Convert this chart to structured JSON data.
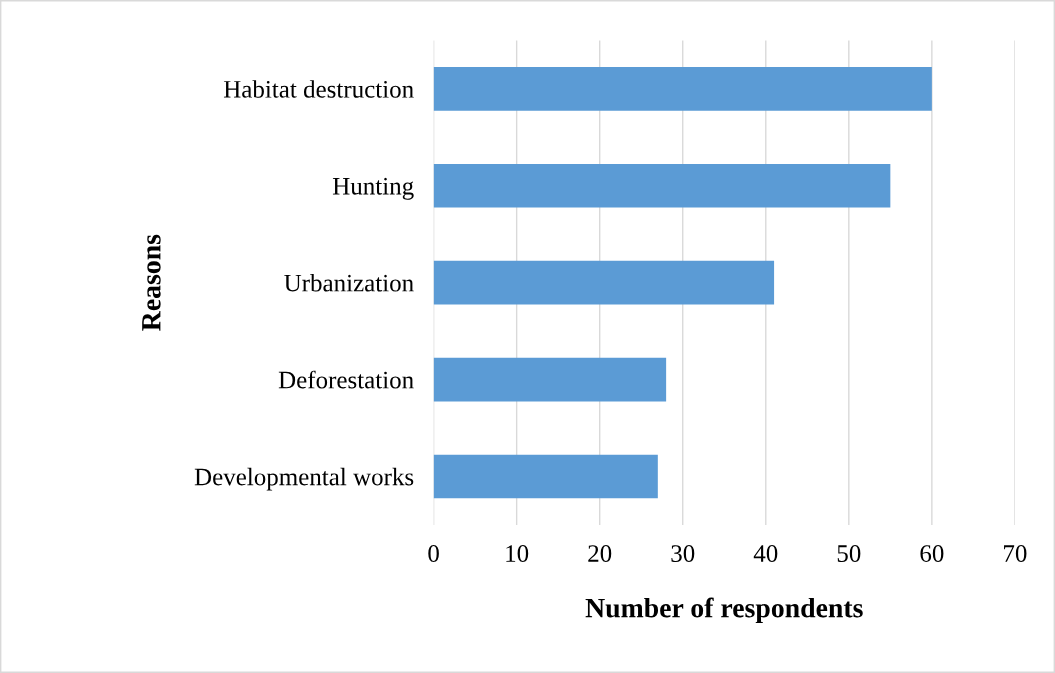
{
  "chart_data": {
    "type": "bar",
    "orientation": "horizontal",
    "categories": [
      "Habitat destruction",
      "Hunting",
      "Urbanization",
      "Deforestation",
      "Developmental works"
    ],
    "values": [
      60,
      55,
      41,
      28,
      27
    ],
    "color": "#5b9bd5",
    "xlabel": "Number of respondents",
    "ylabel": "Reasons",
    "xlim": [
      0,
      70
    ],
    "xticks": [
      0,
      10,
      20,
      30,
      40,
      50,
      60,
      70
    ],
    "grid": "x",
    "legend": false
  }
}
